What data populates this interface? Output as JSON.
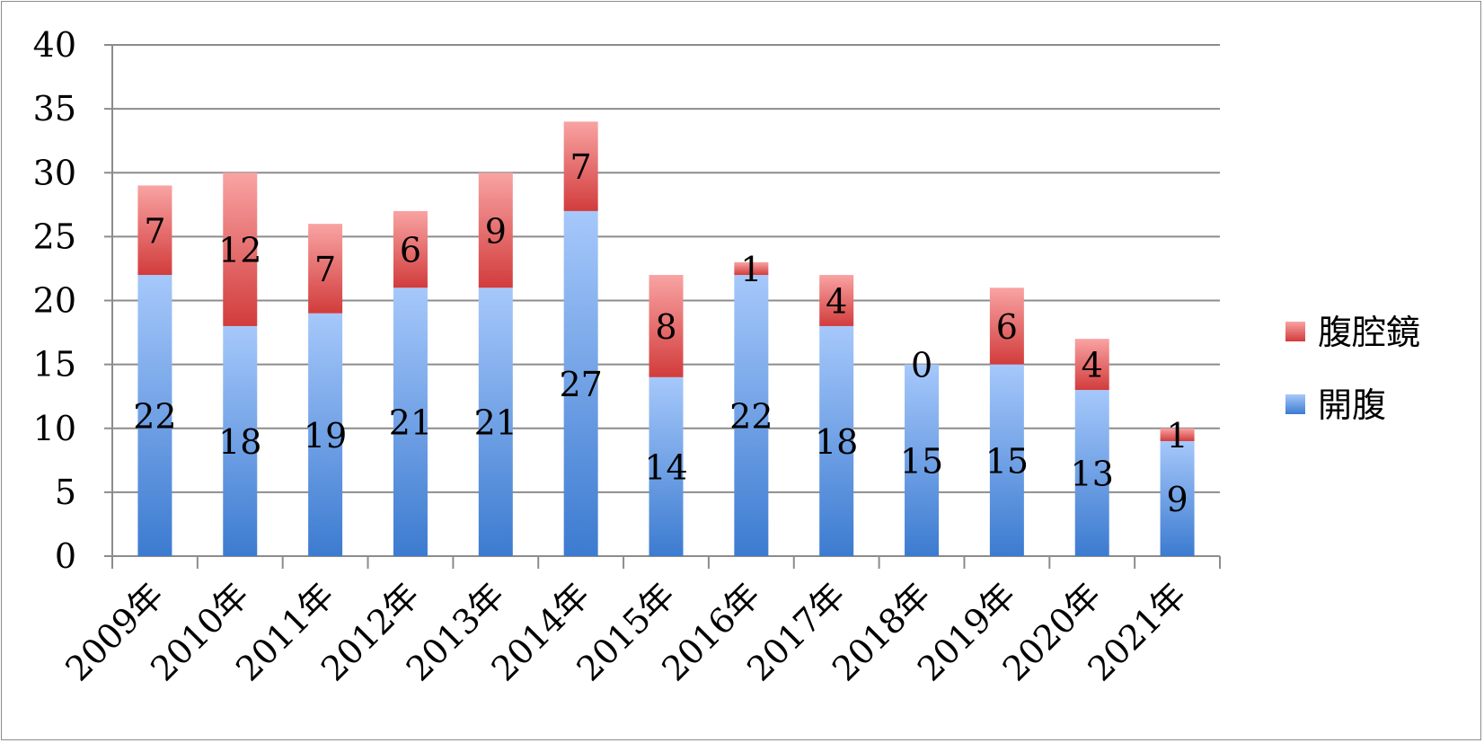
{
  "chart_data": {
    "type": "bar",
    "stacked": true,
    "categories": [
      "2009年",
      "2010年",
      "2011年",
      "2012年",
      "2013年",
      "2014年",
      "2015年",
      "2016年",
      "2017年",
      "2018年",
      "2019年",
      "2020年",
      "2021年"
    ],
    "series": [
      {
        "name": "開腹",
        "values": [
          22,
          18,
          19,
          21,
          21,
          27,
          14,
          22,
          18,
          15,
          15,
          13,
          9
        ],
        "color": "#4a86d4"
      },
      {
        "name": "腹腔鏡",
        "values": [
          7,
          12,
          7,
          6,
          9,
          7,
          8,
          1,
          4,
          0,
          6,
          4,
          1
        ],
        "color": "#d94848"
      }
    ],
    "yticks": [
      "0",
      "5",
      "10",
      "15",
      "20",
      "25",
      "30",
      "35",
      "40"
    ],
    "ylim": [
      0,
      40
    ],
    "grid": true,
    "legend_position": "right"
  }
}
